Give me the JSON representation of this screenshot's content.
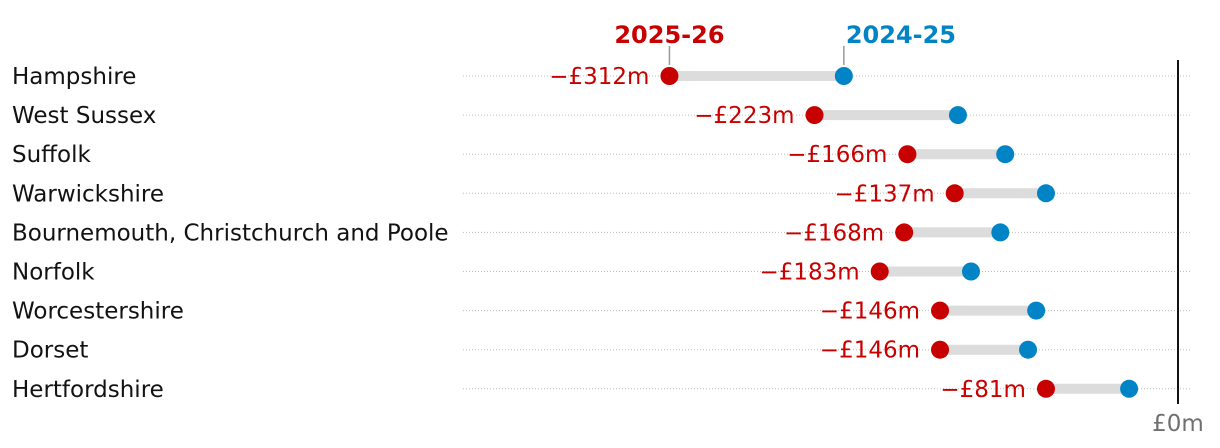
{
  "chart_data": {
    "type": "dumbbell",
    "title": "",
    "xlabel": "",
    "ylabel": "",
    "zero_label": "£0m",
    "series": [
      {
        "name": "2025-26",
        "color": "#c70000"
      },
      {
        "name": "2024-25",
        "color": "#0084c6"
      }
    ],
    "categories": [
      "Hampshire",
      "West Sussex",
      "Suffolk",
      "Warwickshire",
      "Bournemouth, Christchurch and Poole",
      "Norfolk",
      "Worcestershire",
      "Dorset",
      "Hertfordshire"
    ],
    "values_2025_26": [
      -312,
      -223,
      -166,
      -137,
      -168,
      -183,
      -146,
      -146,
      -81
    ],
    "values_2024_25": [
      -205,
      -135,
      -106,
      -81,
      -109,
      -127,
      -87,
      -92,
      -30
    ],
    "value_labels": [
      "−£312m",
      "−£223m",
      "−£166m",
      "−£137m",
      "−£168m",
      "−£183m",
      "−£146m",
      "−£146m",
      "−£81m"
    ],
    "xlim": [
      -435,
      0
    ]
  },
  "colors": {
    "text": "#121212",
    "connector": "#dcdcdc",
    "gridline": "#bdbdbd",
    "zero_line": "#121212",
    "zero_label": "#707070"
  }
}
